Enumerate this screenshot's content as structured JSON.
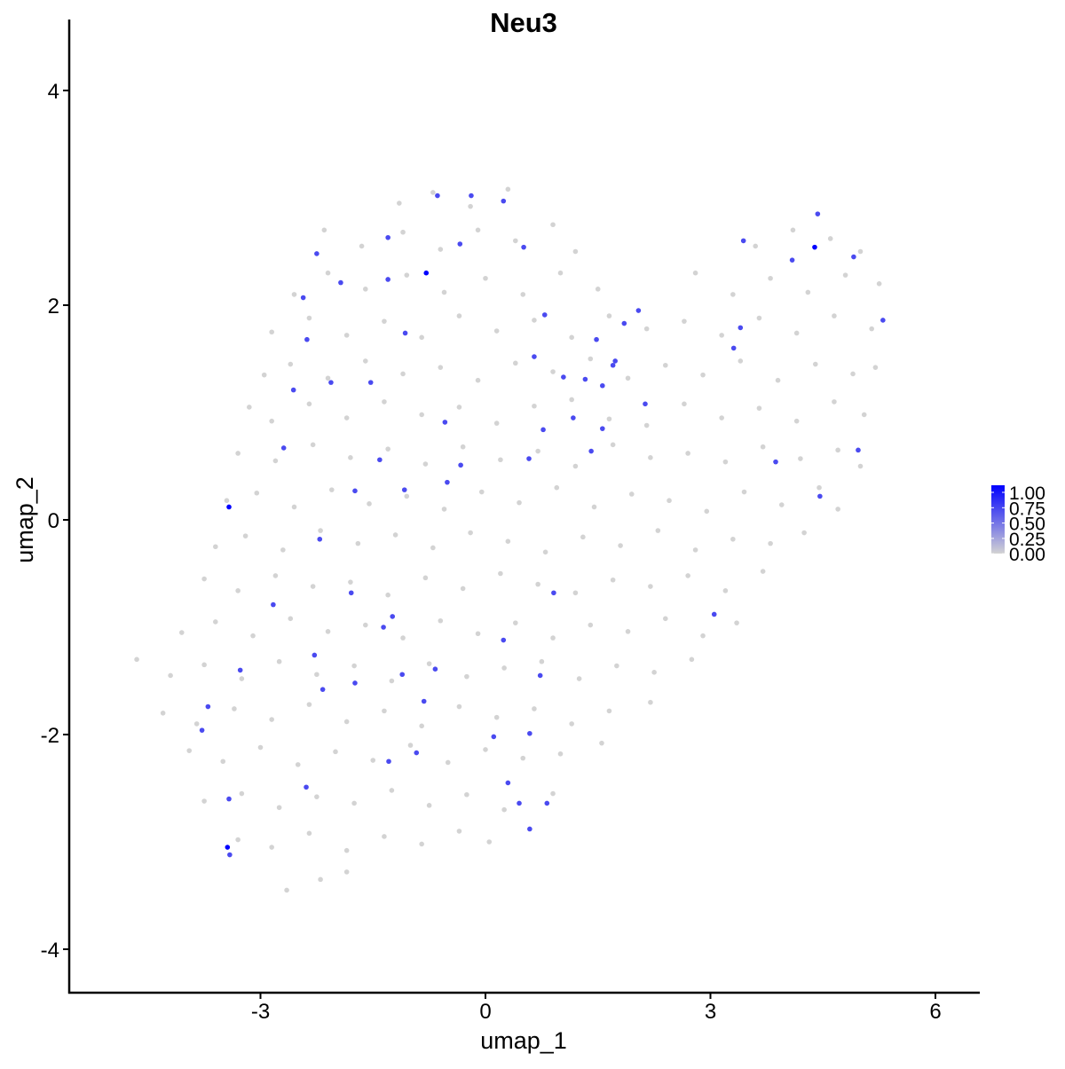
{
  "chart_data": {
    "type": "scatter",
    "title": "Neu3",
    "xlabel": "umap_1",
    "ylabel": "umap_2",
    "xlim": [
      -5.0,
      6.6
    ],
    "ylim": [
      -4.4,
      4.5
    ],
    "xticks": [
      -3,
      0,
      3,
      6
    ],
    "yticks": [
      -4,
      -2,
      0,
      2,
      4
    ],
    "xtick_labels": [
      "-3",
      "0",
      "3",
      "6"
    ],
    "ytick_labels": [
      "-4",
      "-2",
      "0",
      "2",
      "4"
    ],
    "grid": false,
    "legend": {
      "placement": "right",
      "type": "colorbar",
      "labels": [
        "1.00",
        "0.75",
        "0.50",
        "0.25",
        "0.00"
      ],
      "range": [
        0,
        1
      ],
      "low_color": "#d3d3d3",
      "high_color": "#0000ff"
    },
    "background_points_value": 0,
    "background_points": [
      [
        -1.15,
        2.95
      ],
      [
        -0.7,
        3.05
      ],
      [
        -0.2,
        2.92
      ],
      [
        0.3,
        3.08
      ],
      [
        -2.15,
        2.7
      ],
      [
        -1.65,
        2.55
      ],
      [
        -1.1,
        2.68
      ],
      [
        -0.6,
        2.52
      ],
      [
        -0.1,
        2.7
      ],
      [
        0.4,
        2.6
      ],
      [
        0.9,
        2.75
      ],
      [
        1.2,
        2.5
      ],
      [
        3.6,
        2.55
      ],
      [
        4.1,
        2.7
      ],
      [
        4.6,
        2.62
      ],
      [
        5.0,
        2.5
      ],
      [
        -2.55,
        2.1
      ],
      [
        -2.1,
        2.3
      ],
      [
        -1.6,
        2.15
      ],
      [
        -1.05,
        2.28
      ],
      [
        -0.55,
        2.12
      ],
      [
        0.0,
        2.25
      ],
      [
        0.5,
        2.1
      ],
      [
        1.0,
        2.3
      ],
      [
        1.5,
        2.15
      ],
      [
        2.8,
        2.3
      ],
      [
        3.3,
        2.1
      ],
      [
        3.8,
        2.25
      ],
      [
        4.3,
        2.12
      ],
      [
        4.8,
        2.28
      ],
      [
        5.25,
        2.2
      ],
      [
        -2.85,
        1.75
      ],
      [
        -2.35,
        1.88
      ],
      [
        -1.85,
        1.72
      ],
      [
        -1.35,
        1.85
      ],
      [
        -0.85,
        1.7
      ],
      [
        -0.35,
        1.9
      ],
      [
        0.15,
        1.76
      ],
      [
        0.65,
        1.86
      ],
      [
        1.15,
        1.7
      ],
      [
        1.65,
        1.9
      ],
      [
        2.15,
        1.78
      ],
      [
        2.65,
        1.85
      ],
      [
        3.15,
        1.72
      ],
      [
        3.65,
        1.88
      ],
      [
        4.15,
        1.74
      ],
      [
        4.65,
        1.9
      ],
      [
        5.15,
        1.78
      ],
      [
        -2.95,
        1.35
      ],
      [
        -2.6,
        1.45
      ],
      [
        -2.1,
        1.32
      ],
      [
        -1.6,
        1.48
      ],
      [
        -1.1,
        1.36
      ],
      [
        -0.6,
        1.42
      ],
      [
        -0.1,
        1.3
      ],
      [
        0.4,
        1.46
      ],
      [
        0.9,
        1.38
      ],
      [
        1.4,
        1.5
      ],
      [
        1.9,
        1.32
      ],
      [
        2.4,
        1.44
      ],
      [
        2.9,
        1.35
      ],
      [
        3.4,
        1.48
      ],
      [
        3.9,
        1.3
      ],
      [
        4.4,
        1.45
      ],
      [
        4.9,
        1.36
      ],
      [
        5.2,
        1.42
      ],
      [
        -3.15,
        1.05
      ],
      [
        -2.85,
        0.92
      ],
      [
        -2.35,
        1.08
      ],
      [
        -1.85,
        0.95
      ],
      [
        -1.35,
        1.1
      ],
      [
        -0.85,
        0.98
      ],
      [
        -0.35,
        1.05
      ],
      [
        0.15,
        0.9
      ],
      [
        0.65,
        1.06
      ],
      [
        1.15,
        1.12
      ],
      [
        1.65,
        0.94
      ],
      [
        2.15,
        0.88
      ],
      [
        2.65,
        1.08
      ],
      [
        3.15,
        0.95
      ],
      [
        3.65,
        1.04
      ],
      [
        4.15,
        0.92
      ],
      [
        4.65,
        1.1
      ],
      [
        5.05,
        0.98
      ],
      [
        -3.3,
        0.62
      ],
      [
        -2.8,
        0.55
      ],
      [
        -2.3,
        0.7
      ],
      [
        -1.8,
        0.58
      ],
      [
        -1.3,
        0.66
      ],
      [
        -0.8,
        0.52
      ],
      [
        -0.3,
        0.68
      ],
      [
        0.2,
        0.56
      ],
      [
        0.7,
        0.64
      ],
      [
        1.2,
        0.5
      ],
      [
        1.7,
        0.7
      ],
      [
        2.2,
        0.58
      ],
      [
        2.7,
        0.62
      ],
      [
        3.2,
        0.54
      ],
      [
        3.7,
        0.68
      ],
      [
        4.2,
        0.57
      ],
      [
        4.7,
        0.65
      ],
      [
        5.0,
        0.5
      ],
      [
        -3.45,
        0.18
      ],
      [
        -3.05,
        0.25
      ],
      [
        -2.55,
        0.12
      ],
      [
        -2.05,
        0.28
      ],
      [
        -1.55,
        0.15
      ],
      [
        -1.05,
        0.22
      ],
      [
        -0.55,
        0.1
      ],
      [
        -0.05,
        0.26
      ],
      [
        0.45,
        0.16
      ],
      [
        0.95,
        0.3
      ],
      [
        1.45,
        0.12
      ],
      [
        1.95,
        0.24
      ],
      [
        2.45,
        0.18
      ],
      [
        2.95,
        0.08
      ],
      [
        3.45,
        0.26
      ],
      [
        3.95,
        0.14
      ],
      [
        4.45,
        0.3
      ],
      [
        4.7,
        0.1
      ],
      [
        -3.6,
        -0.25
      ],
      [
        -3.2,
        -0.15
      ],
      [
        -2.7,
        -0.28
      ],
      [
        -2.2,
        -0.1
      ],
      [
        -1.7,
        -0.22
      ],
      [
        -1.2,
        -0.14
      ],
      [
        -0.7,
        -0.26
      ],
      [
        -0.2,
        -0.12
      ],
      [
        0.3,
        -0.2
      ],
      [
        0.8,
        -0.3
      ],
      [
        1.3,
        -0.16
      ],
      [
        1.8,
        -0.24
      ],
      [
        2.3,
        -0.1
      ],
      [
        2.8,
        -0.28
      ],
      [
        3.3,
        -0.18
      ],
      [
        3.8,
        -0.22
      ],
      [
        4.25,
        -0.12
      ],
      [
        -3.75,
        -0.55
      ],
      [
        -3.3,
        -0.66
      ],
      [
        -2.8,
        -0.52
      ],
      [
        -2.3,
        -0.62
      ],
      [
        -1.8,
        -0.58
      ],
      [
        -1.3,
        -0.7
      ],
      [
        -0.8,
        -0.54
      ],
      [
        -0.3,
        -0.64
      ],
      [
        0.2,
        -0.5
      ],
      [
        0.7,
        -0.6
      ],
      [
        1.2,
        -0.68
      ],
      [
        1.7,
        -0.56
      ],
      [
        2.2,
        -0.62
      ],
      [
        2.7,
        -0.52
      ],
      [
        3.2,
        -0.66
      ],
      [
        3.7,
        -0.48
      ],
      [
        -4.05,
        -1.05
      ],
      [
        -3.6,
        -0.95
      ],
      [
        -3.1,
        -1.08
      ],
      [
        -2.6,
        -0.92
      ],
      [
        -2.1,
        -1.04
      ],
      [
        -1.6,
        -0.98
      ],
      [
        -1.1,
        -1.1
      ],
      [
        -0.6,
        -0.94
      ],
      [
        -0.1,
        -1.06
      ],
      [
        0.4,
        -0.96
      ],
      [
        0.9,
        -1.1
      ],
      [
        1.4,
        -0.98
      ],
      [
        1.9,
        -1.04
      ],
      [
        2.4,
        -0.92
      ],
      [
        2.9,
        -1.08
      ],
      [
        3.35,
        -0.96
      ],
      [
        -4.65,
        -1.3
      ],
      [
        -4.2,
        -1.45
      ],
      [
        -3.75,
        -1.35
      ],
      [
        -3.25,
        -1.48
      ],
      [
        -2.75,
        -1.32
      ],
      [
        -2.25,
        -1.44
      ],
      [
        -1.75,
        -1.36
      ],
      [
        -1.25,
        -1.5
      ],
      [
        -0.75,
        -1.34
      ],
      [
        -0.25,
        -1.46
      ],
      [
        0.25,
        -1.38
      ],
      [
        0.75,
        -1.32
      ],
      [
        1.25,
        -1.48
      ],
      [
        1.75,
        -1.36
      ],
      [
        2.25,
        -1.42
      ],
      [
        2.75,
        -1.3
      ],
      [
        -4.3,
        -1.8
      ],
      [
        -3.85,
        -1.9
      ],
      [
        -3.35,
        -1.76
      ],
      [
        -2.85,
        -1.86
      ],
      [
        -2.35,
        -1.72
      ],
      [
        -1.85,
        -1.88
      ],
      [
        -1.35,
        -1.78
      ],
      [
        -0.85,
        -1.92
      ],
      [
        -0.35,
        -1.74
      ],
      [
        0.15,
        -1.84
      ],
      [
        0.65,
        -1.76
      ],
      [
        1.15,
        -1.9
      ],
      [
        1.65,
        -1.78
      ],
      [
        2.2,
        -1.7
      ],
      [
        -3.95,
        -2.15
      ],
      [
        -3.5,
        -2.25
      ],
      [
        -3.0,
        -2.12
      ],
      [
        -2.5,
        -2.28
      ],
      [
        -2.0,
        -2.16
      ],
      [
        -1.5,
        -2.24
      ],
      [
        -1.0,
        -2.1
      ],
      [
        -0.5,
        -2.26
      ],
      [
        0.0,
        -2.14
      ],
      [
        0.5,
        -2.22
      ],
      [
        1.0,
        -2.18
      ],
      [
        1.55,
        -2.08
      ],
      [
        -3.75,
        -2.62
      ],
      [
        -3.25,
        -2.55
      ],
      [
        -2.75,
        -2.68
      ],
      [
        -2.25,
        -2.58
      ],
      [
        -1.75,
        -2.64
      ],
      [
        -1.25,
        -2.52
      ],
      [
        -0.75,
        -2.66
      ],
      [
        -0.25,
        -2.56
      ],
      [
        0.25,
        -2.7
      ],
      [
        0.9,
        -2.55
      ],
      [
        -3.3,
        -2.98
      ],
      [
        -2.85,
        -3.05
      ],
      [
        -2.35,
        -2.92
      ],
      [
        -1.85,
        -3.08
      ],
      [
        -1.35,
        -2.95
      ],
      [
        -0.85,
        -3.02
      ],
      [
        -0.35,
        -2.9
      ],
      [
        0.05,
        -3.0
      ],
      [
        -2.65,
        -3.45
      ],
      [
        -2.2,
        -3.35
      ],
      [
        -1.85,
        -3.28
      ]
    ],
    "expressing_points": [
      [
        -0.64,
        3.02,
        0.65
      ],
      [
        -0.19,
        3.02,
        0.65
      ],
      [
        0.24,
        2.97,
        0.65
      ],
      [
        4.43,
        2.85,
        0.65
      ],
      [
        -1.3,
        2.63,
        0.65
      ],
      [
        -0.34,
        2.57,
        0.65
      ],
      [
        0.51,
        2.54,
        0.65
      ],
      [
        -2.25,
        2.48,
        0.65
      ],
      [
        3.44,
        2.6,
        0.65
      ],
      [
        4.39,
        2.54,
        1.0
      ],
      [
        4.09,
        2.42,
        0.65
      ],
      [
        4.91,
        2.45,
        0.65
      ],
      [
        -0.79,
        2.3,
        1.0
      ],
      [
        -1.93,
        2.21,
        0.65
      ],
      [
        -1.3,
        2.24,
        0.65
      ],
      [
        -2.43,
        2.07,
        0.65
      ],
      [
        0.79,
        1.91,
        0.65
      ],
      [
        2.04,
        1.95,
        0.65
      ],
      [
        1.85,
        1.83,
        0.65
      ],
      [
        5.3,
        1.86,
        0.65
      ],
      [
        -1.07,
        1.74,
        0.65
      ],
      [
        3.4,
        1.79,
        0.65
      ],
      [
        -2.38,
        1.68,
        0.65
      ],
      [
        1.48,
        1.68,
        0.65
      ],
      [
        3.31,
        1.6,
        0.65
      ],
      [
        0.65,
        1.52,
        0.65
      ],
      [
        1.73,
        1.48,
        0.65
      ],
      [
        1.7,
        1.44,
        0.65
      ],
      [
        1.04,
        1.33,
        0.65
      ],
      [
        1.33,
        1.31,
        0.65
      ],
      [
        -2.06,
        1.28,
        0.65
      ],
      [
        -1.53,
        1.28,
        0.65
      ],
      [
        1.56,
        1.25,
        0.65
      ],
      [
        -2.56,
        1.21,
        0.65
      ],
      [
        2.13,
        1.08,
        0.65
      ],
      [
        1.17,
        0.95,
        0.65
      ],
      [
        -0.54,
        0.91,
        0.65
      ],
      [
        0.77,
        0.84,
        0.65
      ],
      [
        1.56,
        0.85,
        0.65
      ],
      [
        -2.69,
        0.67,
        0.65
      ],
      [
        4.97,
        0.65,
        0.65
      ],
      [
        1.41,
        0.64,
        0.65
      ],
      [
        -1.41,
        0.56,
        0.65
      ],
      [
        0.58,
        0.57,
        0.65
      ],
      [
        -0.33,
        0.51,
        0.65
      ],
      [
        3.87,
        0.54,
        0.65
      ],
      [
        -0.51,
        0.35,
        0.65
      ],
      [
        -1.74,
        0.27,
        0.65
      ],
      [
        -1.08,
        0.28,
        0.65
      ],
      [
        4.46,
        0.22,
        0.65
      ],
      [
        -3.42,
        0.12,
        1.0
      ],
      [
        -2.21,
        -0.18,
        0.65
      ],
      [
        -1.79,
        -0.68,
        0.65
      ],
      [
        0.91,
        -0.68,
        0.65
      ],
      [
        -1.24,
        -0.9,
        0.65
      ],
      [
        3.05,
        -0.88,
        0.65
      ],
      [
        -2.83,
        -0.79,
        0.65
      ],
      [
        -1.36,
        -1.0,
        0.65
      ],
      [
        0.24,
        -1.12,
        0.65
      ],
      [
        -2.28,
        -1.26,
        0.65
      ],
      [
        -0.67,
        -1.39,
        0.65
      ],
      [
        -3.27,
        -1.4,
        0.65
      ],
      [
        -1.11,
        -1.44,
        0.65
      ],
      [
        0.73,
        -1.45,
        0.65
      ],
      [
        -1.74,
        -1.52,
        0.65
      ],
      [
        -2.17,
        -1.58,
        0.65
      ],
      [
        -0.82,
        -1.69,
        0.65
      ],
      [
        -3.7,
        -1.74,
        0.65
      ],
      [
        -3.78,
        -1.96,
        0.65
      ],
      [
        0.11,
        -2.02,
        0.65
      ],
      [
        0.59,
        -1.99,
        0.65
      ],
      [
        -0.92,
        -2.17,
        0.65
      ],
      [
        -1.29,
        -2.25,
        0.65
      ],
      [
        0.3,
        -2.45,
        0.65
      ],
      [
        -2.39,
        -2.49,
        0.65
      ],
      [
        -3.42,
        -2.6,
        0.65
      ],
      [
        0.45,
        -2.64,
        0.65
      ],
      [
        0.82,
        -2.64,
        0.65
      ],
      [
        0.59,
        -2.88,
        0.65
      ],
      [
        -3.44,
        -3.05,
        1.0
      ],
      [
        -3.41,
        -3.12,
        0.65
      ]
    ]
  }
}
